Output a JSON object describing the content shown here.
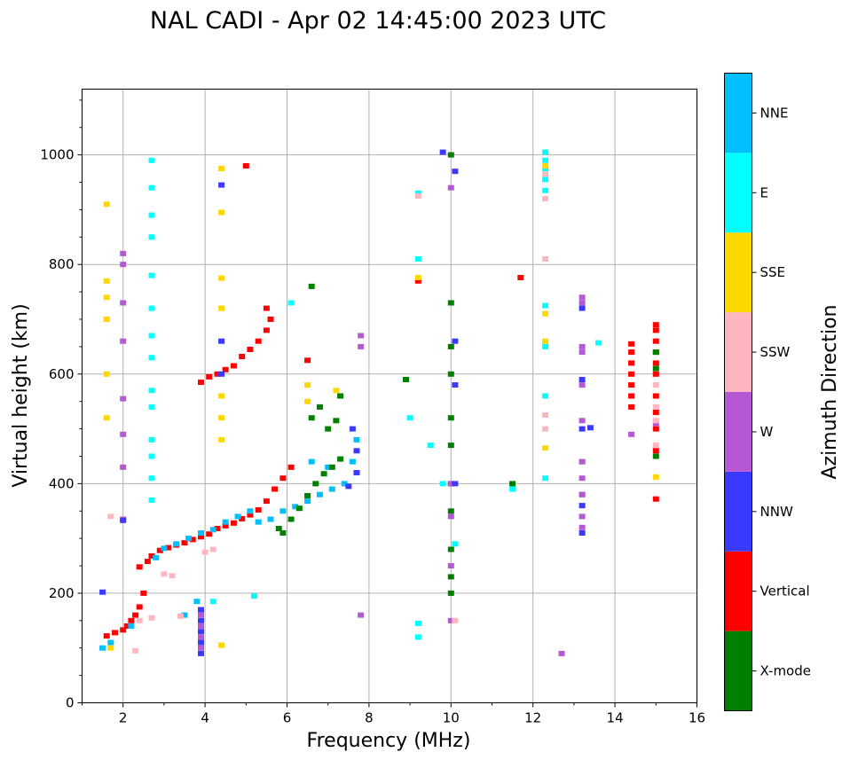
{
  "chart_data": {
    "type": "scatter",
    "title": "NAL CADI - Apr 02 14:45:00 2023 UTC",
    "xlabel": "Frequency (MHz)",
    "ylabel": "Virtual height (km)",
    "xlim": [
      1,
      16
    ],
    "ylim": [
      0,
      1120
    ],
    "xticks": [
      2,
      4,
      6,
      8,
      10,
      12,
      14,
      16
    ],
    "xtick_labels": [
      "2",
      "4",
      "6",
      "8",
      "10",
      "12",
      "14",
      "16"
    ],
    "yticks": [
      0,
      200,
      400,
      600,
      800,
      1000
    ],
    "ytick_labels": [
      "0",
      "200",
      "400",
      "600",
      "800",
      "1000"
    ],
    "grid": true,
    "colorbar": {
      "title": "Azimuth Direction",
      "categories": [
        {
          "label": "X-mode",
          "color": "#008000"
        },
        {
          "label": "Vertical",
          "color": "#ff0000"
        },
        {
          "label": "NNW",
          "color": "#3a3aff"
        },
        {
          "label": "W",
          "color": "#b657d6"
        },
        {
          "label": "SSW",
          "color": "#ffb6c1"
        },
        {
          "label": "SSE",
          "color": "#ffd700"
        },
        {
          "label": "E",
          "color": "#00ffff"
        },
        {
          "label": "NNE",
          "color": "#00bfff"
        }
      ]
    },
    "clusters": [
      {
        "category": "Vertical",
        "points": [
          [
            1.6,
            122
          ],
          [
            1.8,
            128
          ],
          [
            2.0,
            133
          ],
          [
            2.1,
            140
          ],
          [
            2.2,
            150
          ],
          [
            2.3,
            160
          ],
          [
            2.4,
            175
          ],
          [
            2.5,
            200
          ],
          [
            2.4,
            248
          ],
          [
            2.6,
            258
          ],
          [
            2.7,
            268
          ],
          [
            2.9,
            278
          ],
          [
            3.1,
            283
          ],
          [
            3.3,
            288
          ],
          [
            3.5,
            292
          ],
          [
            3.7,
            298
          ],
          [
            3.9,
            303
          ],
          [
            4.1,
            308
          ],
          [
            4.3,
            318
          ],
          [
            4.5,
            323
          ],
          [
            4.7,
            328
          ],
          [
            4.9,
            336
          ],
          [
            5.1,
            343
          ],
          [
            5.3,
            352
          ],
          [
            5.5,
            368
          ],
          [
            5.7,
            390
          ],
          [
            5.9,
            410
          ],
          [
            6.1,
            430
          ],
          [
            3.9,
            585
          ],
          [
            4.1,
            595
          ],
          [
            4.3,
            600
          ],
          [
            4.5,
            608
          ],
          [
            4.7,
            615
          ],
          [
            4.9,
            632
          ],
          [
            5.1,
            645
          ],
          [
            5.3,
            660
          ],
          [
            5.5,
            680
          ],
          [
            5.6,
            700
          ],
          [
            5.5,
            720
          ],
          [
            6.5,
            625
          ],
          [
            14.4,
            540
          ],
          [
            14.4,
            560
          ],
          [
            14.4,
            580
          ],
          [
            14.4,
            600
          ],
          [
            14.4,
            620
          ],
          [
            14.4,
            640
          ],
          [
            14.4,
            655
          ],
          [
            15.0,
            690
          ],
          [
            15.0,
            680
          ],
          [
            15.0,
            660
          ],
          [
            15.0,
            640
          ],
          [
            15.0,
            620
          ],
          [
            15.0,
            600
          ],
          [
            15.0,
            560
          ],
          [
            15.0,
            530
          ],
          [
            15.0,
            500
          ],
          [
            15.0,
            460
          ],
          [
            15.0,
            372
          ],
          [
            11.7,
            776
          ],
          [
            9.2,
            770
          ],
          [
            5.0,
            980
          ]
        ]
      },
      {
        "category": "NNE",
        "points": [
          [
            2.8,
            265
          ],
          [
            3.0,
            282
          ],
          [
            3.3,
            290
          ],
          [
            3.6,
            300
          ],
          [
            3.9,
            310
          ],
          [
            4.2,
            316
          ],
          [
            4.5,
            330
          ],
          [
            4.8,
            340
          ],
          [
            5.1,
            350
          ],
          [
            5.3,
            330
          ],
          [
            5.6,
            335
          ],
          [
            5.9,
            350
          ],
          [
            6.2,
            358
          ],
          [
            6.5,
            368
          ],
          [
            6.8,
            380
          ],
          [
            7.1,
            390
          ],
          [
            7.4,
            400
          ],
          [
            7.6,
            440
          ],
          [
            7.7,
            480
          ],
          [
            6.6,
            440
          ],
          [
            7.0,
            430
          ],
          [
            3.8,
            185
          ],
          [
            3.5,
            160
          ],
          [
            2.2,
            140
          ],
          [
            1.5,
            100
          ],
          [
            1.7,
            110
          ]
        ]
      },
      {
        "category": "X-mode",
        "points": [
          [
            5.8,
            318
          ],
          [
            6.1,
            335
          ],
          [
            6.3,
            355
          ],
          [
            6.5,
            378
          ],
          [
            6.7,
            400
          ],
          [
            6.9,
            418
          ],
          [
            7.1,
            430
          ],
          [
            7.3,
            445
          ],
          [
            7.0,
            500
          ],
          [
            7.2,
            515
          ],
          [
            6.8,
            540
          ],
          [
            7.3,
            560
          ],
          [
            6.6,
            520
          ],
          [
            10.0,
            200
          ],
          [
            10.0,
            230
          ],
          [
            10.0,
            280
          ],
          [
            10.0,
            350
          ],
          [
            10.0,
            400
          ],
          [
            10.0,
            470
          ],
          [
            10.0,
            520
          ],
          [
            10.0,
            600
          ],
          [
            10.0,
            650
          ],
          [
            10.0,
            730
          ],
          [
            15.0,
            640
          ],
          [
            15.0,
            610
          ],
          [
            15.0,
            450
          ],
          [
            13.2,
            440
          ],
          [
            13.2,
            380
          ],
          [
            11.5,
            400
          ],
          [
            8.9,
            590
          ],
          [
            6.6,
            760
          ],
          [
            10.0,
            1000
          ],
          [
            5.9,
            310
          ]
        ]
      },
      {
        "category": "E",
        "points": [
          [
            2.7,
            990
          ],
          [
            2.7,
            940
          ],
          [
            2.7,
            890
          ],
          [
            2.7,
            850
          ],
          [
            2.7,
            780
          ],
          [
            2.7,
            720
          ],
          [
            2.7,
            670
          ],
          [
            2.7,
            630
          ],
          [
            2.7,
            570
          ],
          [
            2.7,
            540
          ],
          [
            2.7,
            480
          ],
          [
            2.7,
            450
          ],
          [
            2.7,
            410
          ],
          [
            2.7,
            370
          ],
          [
            4.2,
            185
          ],
          [
            5.2,
            195
          ],
          [
            9.2,
            145
          ],
          [
            9.2,
            120
          ],
          [
            9.2,
            810
          ],
          [
            9.2,
            930
          ],
          [
            12.3,
            1005
          ],
          [
            12.3,
            990
          ],
          [
            12.3,
            975
          ],
          [
            12.3,
            955
          ],
          [
            12.3,
            935
          ],
          [
            12.3,
            725
          ],
          [
            12.3,
            650
          ],
          [
            12.3,
            560
          ],
          [
            12.3,
            410
          ],
          [
            11.5,
            390
          ],
          [
            9.5,
            470
          ],
          [
            9.8,
            400
          ],
          [
            9.0,
            520
          ],
          [
            10.1,
            290
          ],
          [
            13.6,
            657
          ],
          [
            6.1,
            730
          ]
        ]
      },
      {
        "category": "W",
        "points": [
          [
            2.0,
            800
          ],
          [
            2.0,
            820
          ],
          [
            2.0,
            730
          ],
          [
            2.0,
            660
          ],
          [
            2.0,
            555
          ],
          [
            2.0,
            490
          ],
          [
            2.0,
            430
          ],
          [
            2.0,
            335
          ],
          [
            3.9,
            160
          ],
          [
            3.9,
            140
          ],
          [
            3.9,
            120
          ],
          [
            3.9,
            100
          ],
          [
            13.2,
            740
          ],
          [
            13.2,
            730
          ],
          [
            13.2,
            650
          ],
          [
            13.2,
            640
          ],
          [
            13.2,
            580
          ],
          [
            13.2,
            515
          ],
          [
            13.2,
            440
          ],
          [
            13.2,
            410
          ],
          [
            13.2,
            380
          ],
          [
            13.2,
            340
          ],
          [
            13.2,
            320
          ],
          [
            15.0,
            510
          ],
          [
            14.4,
            490
          ],
          [
            12.7,
            90
          ],
          [
            10.0,
            150
          ],
          [
            10.0,
            250
          ],
          [
            10.0,
            340
          ],
          [
            10.0,
            400
          ],
          [
            10.0,
            940
          ],
          [
            7.8,
            650
          ],
          [
            7.8,
            670
          ],
          [
            7.8,
            160
          ]
        ]
      },
      {
        "category": "SSW",
        "points": [
          [
            2.4,
            150
          ],
          [
            2.7,
            155
          ],
          [
            3.0,
            235
          ],
          [
            3.2,
            232
          ],
          [
            3.4,
            158
          ],
          [
            2.3,
            95
          ],
          [
            1.7,
            340
          ],
          [
            12.3,
            965
          ],
          [
            12.3,
            920
          ],
          [
            12.3,
            810
          ],
          [
            12.3,
            525
          ],
          [
            12.3,
            500
          ],
          [
            15.0,
            515
          ],
          [
            15.0,
            540
          ],
          [
            15.0,
            580
          ],
          [
            15.0,
            470
          ],
          [
            9.2,
            925
          ],
          [
            10.1,
            150
          ],
          [
            4.0,
            275
          ],
          [
            4.2,
            280
          ]
        ]
      },
      {
        "category": "SSE",
        "points": [
          [
            1.6,
            910
          ],
          [
            1.6,
            770
          ],
          [
            1.6,
            740
          ],
          [
            1.6,
            700
          ],
          [
            1.6,
            600
          ],
          [
            1.6,
            520
          ],
          [
            4.4,
            895
          ],
          [
            4.4,
            975
          ],
          [
            4.4,
            775
          ],
          [
            4.4,
            720
          ],
          [
            4.4,
            560
          ],
          [
            4.4,
            520
          ],
          [
            4.4,
            480
          ],
          [
            4.4,
            105
          ],
          [
            6.5,
            550
          ],
          [
            6.5,
            580
          ],
          [
            7.2,
            570
          ],
          [
            12.3,
            980
          ],
          [
            12.3,
            710
          ],
          [
            12.3,
            660
          ],
          [
            12.3,
            465
          ],
          [
            15.0,
            412
          ],
          [
            9.2,
            776
          ],
          [
            1.7,
            100
          ]
        ]
      },
      {
        "category": "NNW",
        "points": [
          [
            3.9,
            90
          ],
          [
            3.9,
            110
          ],
          [
            3.9,
            130
          ],
          [
            3.9,
            150
          ],
          [
            3.9,
            170
          ],
          [
            4.4,
            945
          ],
          [
            4.4,
            660
          ],
          [
            4.4,
            600
          ],
          [
            9.8,
            1005
          ],
          [
            10.1,
            970
          ],
          [
            10.1,
            660
          ],
          [
            10.1,
            580
          ],
          [
            10.1,
            400
          ],
          [
            13.2,
            500
          ],
          [
            13.4,
            502
          ],
          [
            13.2,
            720
          ],
          [
            13.2,
            590
          ],
          [
            13.2,
            360
          ],
          [
            13.2,
            310
          ],
          [
            7.7,
            420
          ],
          [
            7.7,
            460
          ],
          [
            7.6,
            500
          ],
          [
            7.5,
            395
          ],
          [
            1.5,
            202
          ],
          [
            2.0,
            333
          ]
        ]
      }
    ]
  }
}
